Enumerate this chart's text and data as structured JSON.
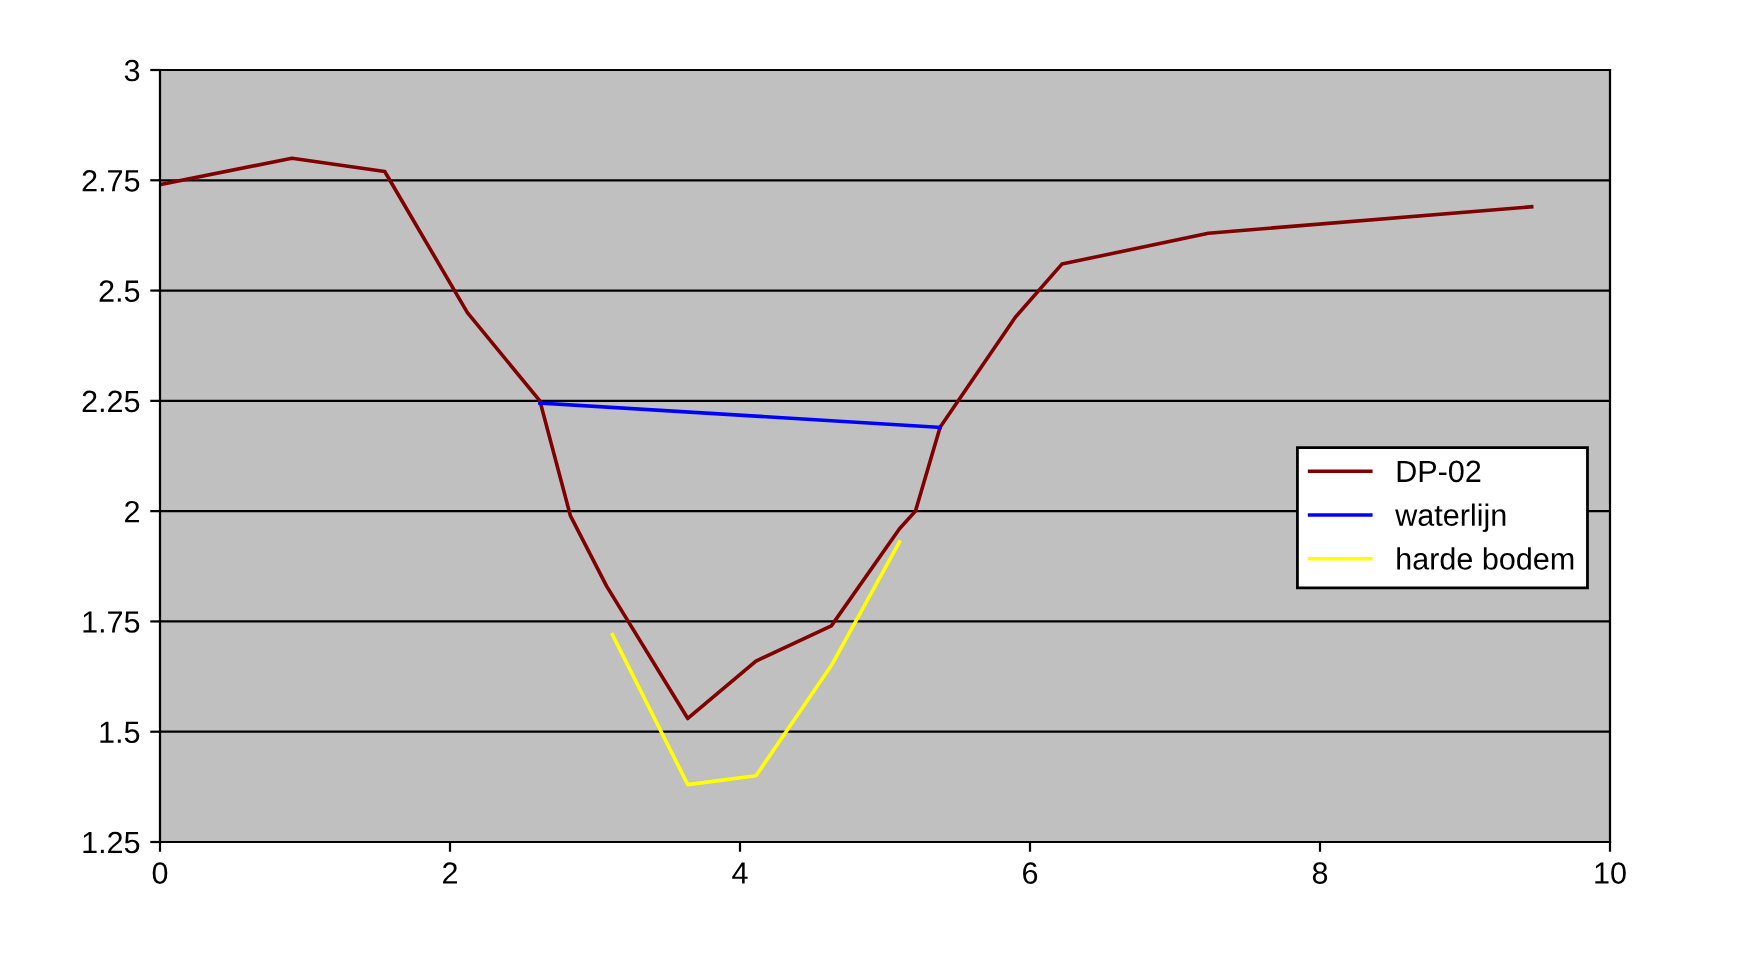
{
  "chart_data": {
    "type": "line",
    "xlim": [
      0,
      10
    ],
    "xticks": [
      0,
      2,
      4,
      6,
      8,
      10
    ],
    "ylim": [
      1.25,
      3
    ],
    "yticks": [
      1.25,
      1.5,
      1.75,
      2,
      2.25,
      2.5,
      2.75,
      3
    ],
    "grid": "y",
    "legend": "right",
    "marker": "none",
    "line_style": "solid",
    "series": [
      {
        "name": "DP-02",
        "color": "#800000",
        "x": [
          0,
          0.91,
          1.55,
          2.12,
          2.62,
          2.83,
          3.08,
          3.64,
          4.11,
          4.63,
          5.1,
          5.21,
          5.38,
          5.9,
          6.22,
          7.23,
          9.46
        ],
        "values": [
          2.74,
          2.8,
          2.77,
          2.45,
          2.25,
          1.99,
          1.83,
          1.53,
          1.66,
          1.74,
          1.96,
          2.0,
          2.19,
          2.44,
          2.56,
          2.63,
          2.69
        ]
      },
      {
        "name": "waterlijn",
        "color": "#0000ff",
        "x": [
          2.62,
          5.38
        ],
        "values": [
          2.245,
          2.19
        ]
      },
      {
        "name": "harde bodem",
        "color": "#ffff00",
        "x": [
          3.12,
          3.64,
          4.11,
          4.63,
          5.1
        ],
        "values": [
          1.72,
          1.38,
          1.4,
          1.65,
          1.93
        ]
      }
    ]
  }
}
